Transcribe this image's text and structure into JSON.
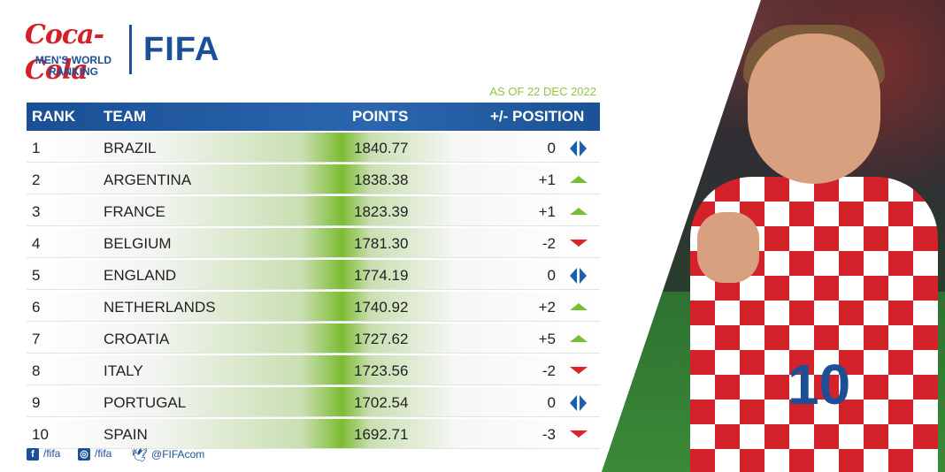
{
  "header": {
    "sponsor": "Coca-Cola",
    "subtitle_line1": "MEN'S WORLD",
    "subtitle_line2": "RANKING",
    "brand": "FIFA",
    "date": "AS OF 22 DEC 2022"
  },
  "table": {
    "columns": {
      "rank": "RANK",
      "team": "TEAM",
      "points": "POINTS",
      "change": "+/- POSITION"
    },
    "rows": [
      {
        "rank": "1",
        "team": "BRAZIL",
        "points": "1840.77",
        "change": "0",
        "trend": "same"
      },
      {
        "rank": "2",
        "team": "ARGENTINA",
        "points": "1838.38",
        "change": "+1",
        "trend": "up"
      },
      {
        "rank": "3",
        "team": "FRANCE",
        "points": "1823.39",
        "change": "+1",
        "trend": "up"
      },
      {
        "rank": "4",
        "team": "BELGIUM",
        "points": "1781.30",
        "change": "-2",
        "trend": "down"
      },
      {
        "rank": "5",
        "team": "ENGLAND",
        "points": "1774.19",
        "change": "0",
        "trend": "same"
      },
      {
        "rank": "6",
        "team": "NETHERLANDS",
        "points": "1740.92",
        "change": "+2",
        "trend": "up"
      },
      {
        "rank": "7",
        "team": "CROATIA",
        "points": "1727.62",
        "change": "+5",
        "trend": "up"
      },
      {
        "rank": "8",
        "team": "ITALY",
        "points": "1723.56",
        "change": "-2",
        "trend": "down"
      },
      {
        "rank": "9",
        "team": "PORTUGAL",
        "points": "1702.54",
        "change": "0",
        "trend": "same"
      },
      {
        "rank": "10",
        "team": "SPAIN",
        "points": "1692.71",
        "change": "-3",
        "trend": "down"
      }
    ]
  },
  "footer": {
    "facebook": "/fifa",
    "instagram": "/fifa",
    "twitter": "@FIFAcom"
  },
  "photo": {
    "jersey_number": "10"
  },
  "colors": {
    "brand_blue": "#1c4f95",
    "up_green": "#78be33",
    "down_red": "#d9252a",
    "same_blue": "#1c5fb0",
    "date_green": "#8dc63f"
  }
}
